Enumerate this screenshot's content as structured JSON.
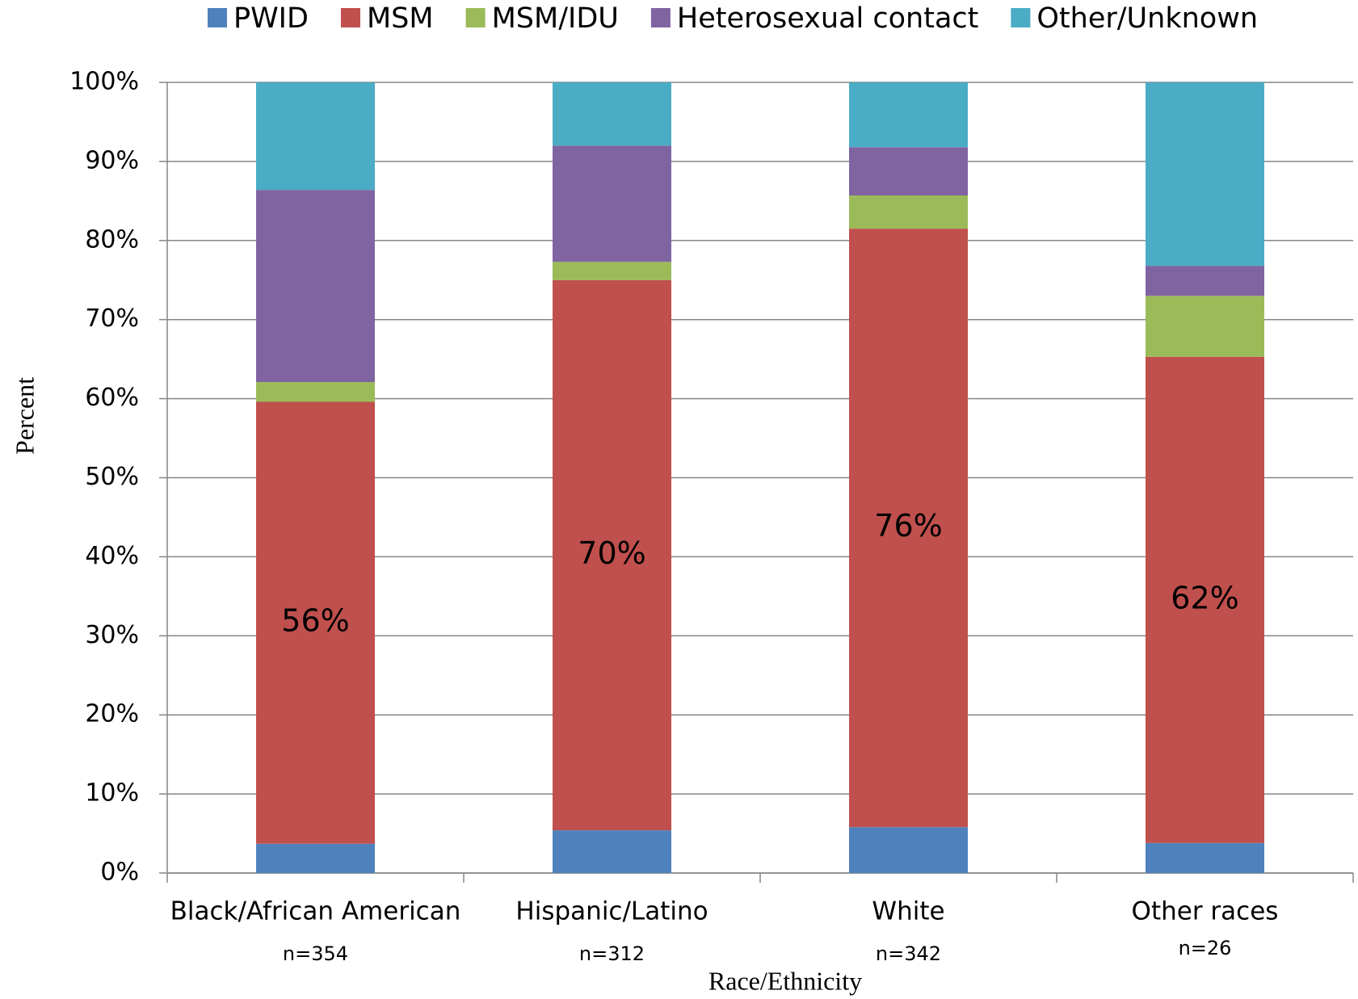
{
  "chart_data": {
    "type": "stacked_bar",
    "categories": [
      "Black/African American",
      "Hispanic/Latino",
      "White",
      "Other races"
    ],
    "sample_sizes": [
      "n=354",
      "n=312",
      "n=342",
      "n=26"
    ],
    "x_label": "Race/Ethnicity",
    "y_label": "Percent",
    "series": [
      {
        "name": "PWID",
        "color": "#4f81bd",
        "values": [
          3.7,
          5.4,
          5.8,
          3.8
        ]
      },
      {
        "name": "MSM",
        "color": "#c0504d",
        "values": [
          55.9,
          69.6,
          75.7,
          61.5
        ],
        "value_labels": [
          "56%",
          "70%",
          "76%",
          "62%"
        ]
      },
      {
        "name": "MSM/IDU",
        "color": "#9bbb59",
        "values": [
          2.5,
          2.3,
          4.2,
          7.7
        ]
      },
      {
        "name": "Heterosexual contact",
        "color": "#8064a2",
        "values": [
          24.3,
          14.7,
          6.1,
          3.8
        ]
      },
      {
        "name": "Other/Unknown",
        "color": "#4bacc6",
        "values": [
          13.6,
          8.0,
          8.2,
          23.2
        ]
      }
    ],
    "ylim": [
      0,
      100
    ],
    "yticks": [
      {
        "value": 0,
        "label": "0%"
      },
      {
        "value": 10,
        "label": "10%"
      },
      {
        "value": 20,
        "label": "20%"
      },
      {
        "value": 30,
        "label": "30%"
      },
      {
        "value": 40,
        "label": "40%"
      },
      {
        "value": 50,
        "label": "50%"
      },
      {
        "value": 60,
        "label": "60%"
      },
      {
        "value": 70,
        "label": "70%"
      },
      {
        "value": 80,
        "label": "80%"
      },
      {
        "value": 90,
        "label": "90%"
      },
      {
        "value": 100,
        "label": "100%"
      }
    ],
    "grid": true,
    "legend": "top"
  }
}
